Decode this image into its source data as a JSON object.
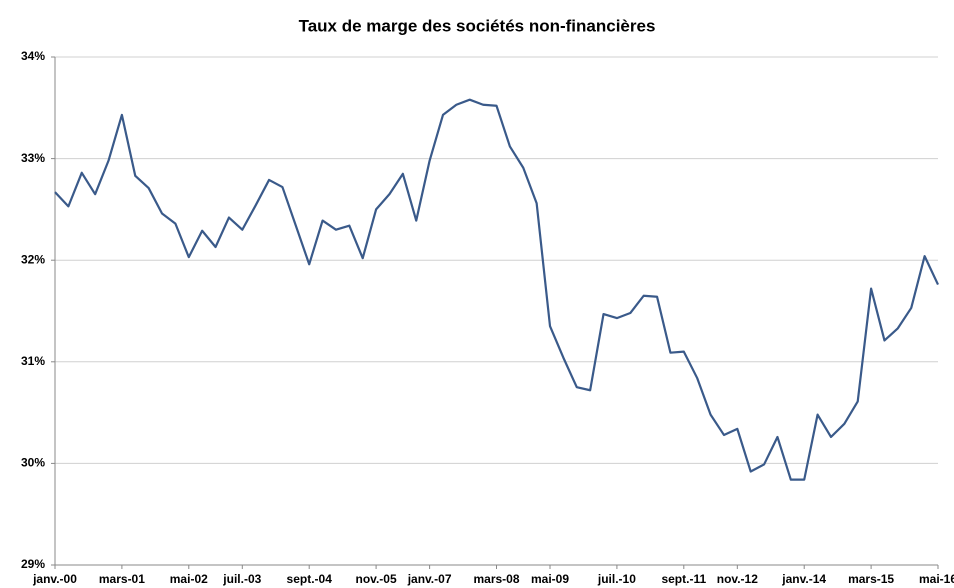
{
  "chart_data": {
    "type": "line",
    "title": "Taux de marge des sociétés non-financières",
    "categories": [
      "janv.-00",
      null,
      null,
      null,
      null,
      "mars-01",
      null,
      null,
      null,
      null,
      "mai-02",
      null,
      null,
      null,
      "juil.-03",
      null,
      null,
      null,
      null,
      "sept.-04",
      null,
      null,
      null,
      null,
      "nov.-05",
      null,
      null,
      null,
      "janv.-07",
      null,
      null,
      null,
      null,
      "mars-08",
      null,
      null,
      null,
      "mai-09",
      null,
      null,
      null,
      null,
      "juil.-10",
      null,
      null,
      null,
      null,
      "sept.-11",
      null,
      null,
      null,
      "nov.-12",
      null,
      null,
      null,
      null,
      "janv.-14",
      null,
      null,
      null,
      null,
      "mars-15",
      null,
      null,
      null,
      null,
      "mai-16"
    ],
    "series": [
      {
        "name": "Taux de marge",
        "color": "#3a5a8a",
        "values": [
          32.67,
          32.53,
          32.86,
          32.65,
          32.98,
          33.43,
          32.83,
          32.71,
          32.46,
          32.36,
          32.03,
          32.29,
          32.13,
          32.42,
          32.3,
          32.54,
          32.79,
          32.72,
          32.34,
          31.96,
          32.39,
          32.3,
          32.34,
          32.02,
          32.5,
          32.65,
          32.85,
          32.39,
          32.98,
          33.43,
          33.53,
          33.58,
          33.53,
          33.52,
          33.12,
          32.91,
          32.56,
          31.35,
          31.04,
          30.75,
          30.72,
          31.47,
          31.43,
          31.48,
          31.65,
          31.64,
          31.09,
          31.1,
          30.84,
          30.48,
          30.28,
          30.34,
          29.92,
          29.99,
          30.26,
          29.84,
          29.84,
          30.48,
          30.26,
          30.39,
          30.61,
          31.72,
          31.21,
          31.33,
          31.53,
          32.04,
          31.76
        ]
      }
    ],
    "ylim": [
      29,
      34
    ],
    "yticks": [
      {
        "value": 29,
        "label": "29%"
      },
      {
        "value": 30,
        "label": "30%"
      },
      {
        "value": 31,
        "label": "31%"
      },
      {
        "value": 32,
        "label": "32%"
      },
      {
        "value": 33,
        "label": "33%"
      },
      {
        "value": 34,
        "label": "34%"
      }
    ],
    "grid": true
  }
}
